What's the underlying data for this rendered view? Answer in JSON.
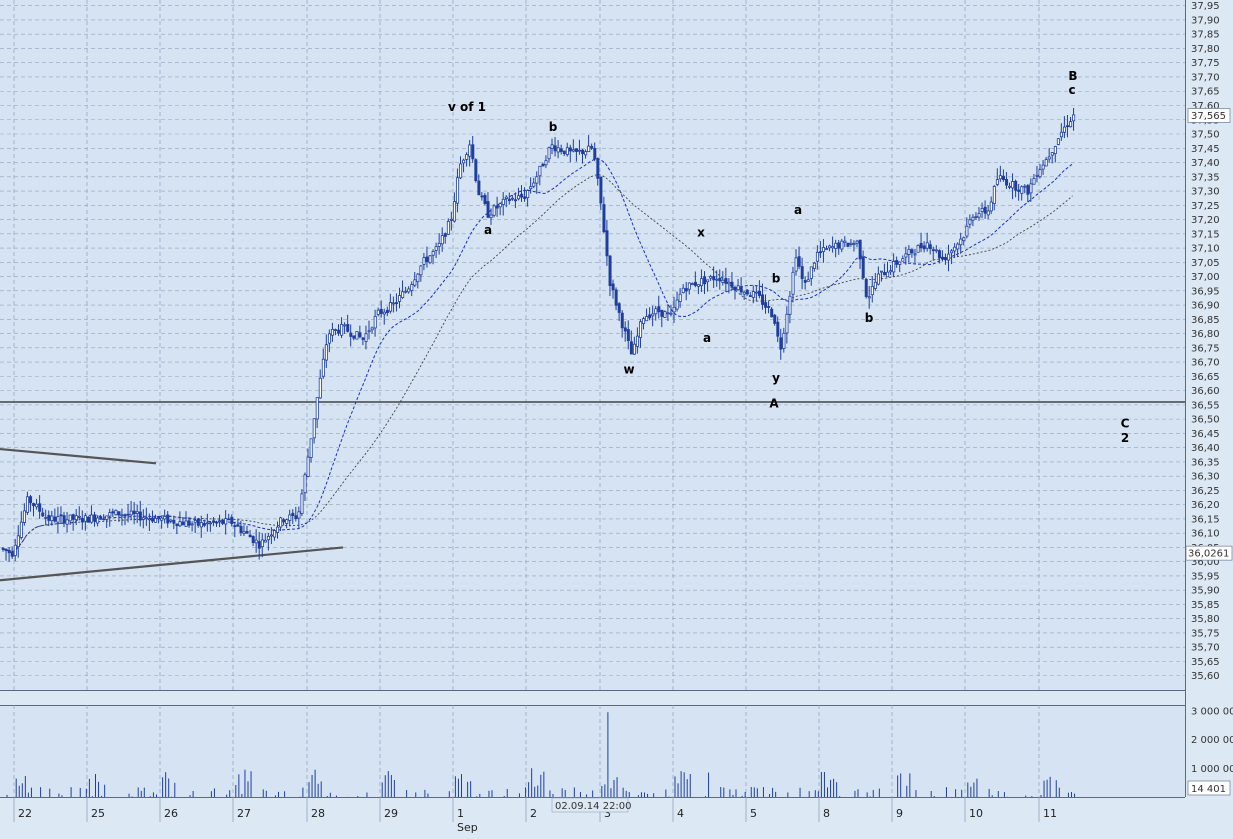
{
  "chart_data": {
    "type": "candlestick",
    "price_axis": {
      "ylim": [
        35.55,
        37.97
      ],
      "ticks": [
        "37,95",
        "37,90",
        "37,85",
        "37,80",
        "37,75",
        "37,70",
        "37,65",
        "37,60",
        "37,55",
        "37,50",
        "37,45",
        "37,40",
        "37,35",
        "37,30",
        "37,25",
        "37,20",
        "37,15",
        "37,10",
        "37,05",
        "37,00",
        "36,95",
        "36,90",
        "36,85",
        "36,80",
        "36,75",
        "36,70",
        "36,65",
        "36,60",
        "36,55",
        "36,50",
        "36,45",
        "36,40",
        "36,35",
        "36,30",
        "36,25",
        "36,20",
        "36,15",
        "36,10",
        "36,05",
        "36,00",
        "35,95",
        "35,90",
        "35,85",
        "35,80",
        "35,75",
        "35,70",
        "35,65",
        "35,60"
      ],
      "last_price_label": "37,565",
      "last_price": 37.565,
      "marker_label": "36,0261",
      "marker_price": 36.03
    },
    "x_axis": {
      "labels": [
        "22",
        "25",
        "26",
        "27",
        "28",
        "29",
        "1",
        "2",
        "3",
        "4",
        "5",
        "8",
        "9",
        "10",
        "11"
      ],
      "month_label": "Sep",
      "cursor_label": "02.09.14 22:00"
    },
    "volume_axis": {
      "ticks": [
        "3 000 00",
        "2 000 00",
        "1 000 00"
      ],
      "current_label": "14 401"
    },
    "horizontal_level": 36.56,
    "wave_labels": [
      {
        "text": "v of 1",
        "time": 467,
        "price": 37.58
      },
      {
        "text": "a",
        "time": 488,
        "price": 37.15
      },
      {
        "text": "b",
        "time": 553,
        "price": 37.51
      },
      {
        "text": "w",
        "time": 629,
        "price": 36.66
      },
      {
        "text": "a",
        "time": 707,
        "price": 36.77
      },
      {
        "text": "x",
        "time": 701,
        "price": 37.14
      },
      {
        "text": "b",
        "time": 776,
        "price": 36.98
      },
      {
        "text": "y",
        "time": 776,
        "price": 36.63
      },
      {
        "text": "A",
        "time": 774,
        "price": 36.54
      },
      {
        "text": "a",
        "time": 798,
        "price": 37.22
      },
      {
        "text": "b",
        "time": 869,
        "price": 36.84
      },
      {
        "text": "B",
        "time": 1073,
        "price": 37.69
      },
      {
        "text": "c",
        "time": 1072,
        "price": 37.64
      },
      {
        "text": "C",
        "time": 1125,
        "price": 36.47
      },
      {
        "text": "2",
        "time": 1125,
        "price": 36.42
      }
    ]
  }
}
